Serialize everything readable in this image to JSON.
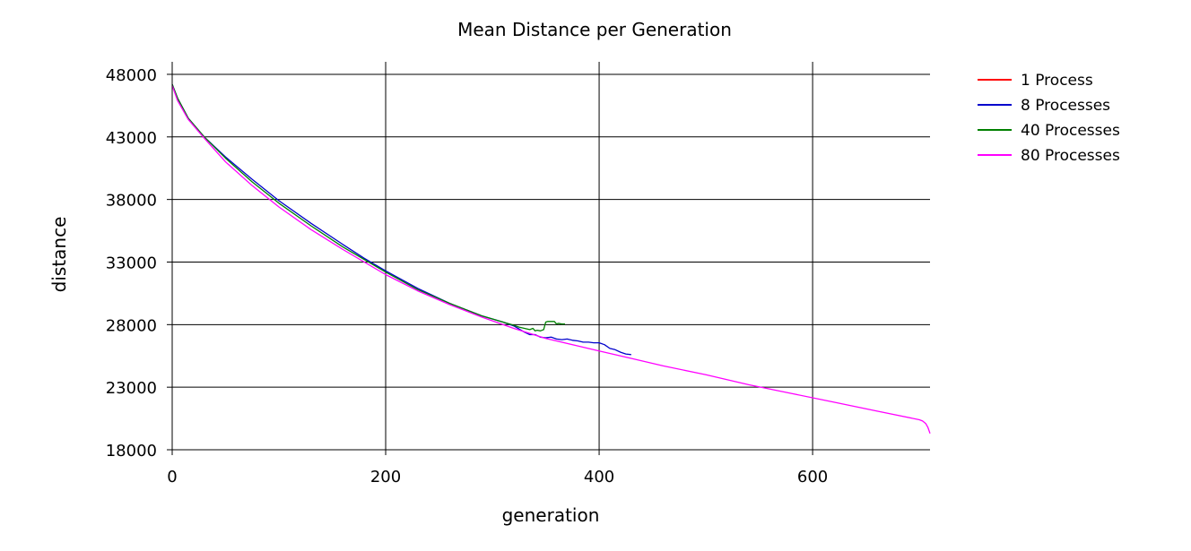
{
  "chart_data": {
    "type": "line",
    "title": "Mean Distance per Generation",
    "xlabel": "generation",
    "ylabel": "distance",
    "xlim": [
      0,
      710
    ],
    "ylim": [
      18000,
      49000
    ],
    "x_ticks": [
      0,
      200,
      400,
      600
    ],
    "y_ticks": [
      18000,
      23000,
      28000,
      33000,
      38000,
      43000,
      48000
    ],
    "grid": true,
    "legend_position": "right",
    "series": [
      {
        "name": "1 Process",
        "color": "#ff0000",
        "x": [
          0
        ],
        "values": [
          47200
        ]
      },
      {
        "name": "8 Processes",
        "color": "#0000cc",
        "x": [
          0,
          5,
          15,
          30,
          50,
          75,
          100,
          130,
          160,
          180,
          200,
          230,
          260,
          290,
          310,
          320,
          325,
          330,
          335,
          340,
          345,
          350,
          355,
          360,
          365,
          370,
          375,
          380,
          385,
          390,
          395,
          400,
          405,
          410,
          415,
          420,
          425,
          430
        ],
        "values": [
          47200,
          46100,
          44500,
          43000,
          41400,
          39600,
          37900,
          36100,
          34400,
          33300,
          32300,
          30900,
          29700,
          28700,
          28200,
          27900,
          27650,
          27400,
          27200,
          27200,
          27000,
          26950,
          27000,
          26850,
          26800,
          26850,
          26750,
          26700,
          26600,
          26600,
          26550,
          26550,
          26400,
          26100,
          26000,
          25800,
          25650,
          25600
        ]
      },
      {
        "name": "40 Processes",
        "color": "#008000",
        "x": [
          0,
          5,
          15,
          30,
          50,
          75,
          100,
          130,
          160,
          180,
          200,
          230,
          260,
          290,
          310,
          320,
          325,
          330,
          335,
          338,
          340,
          342,
          345,
          348,
          350,
          352,
          355,
          358,
          360,
          362,
          365,
          368
        ],
        "values": [
          47200,
          46100,
          44500,
          43000,
          41300,
          39400,
          37700,
          35900,
          34200,
          33200,
          32200,
          30800,
          29700,
          28700,
          28200,
          27950,
          27800,
          27700,
          27600,
          27700,
          27500,
          27550,
          27500,
          27600,
          28200,
          28250,
          28250,
          28250,
          28050,
          28100,
          28050,
          28050
        ]
      },
      {
        "name": "80 Processes",
        "color": "#ff00ff",
        "x": [
          0,
          5,
          15,
          30,
          50,
          75,
          100,
          130,
          160,
          180,
          200,
          230,
          260,
          290,
          320,
          350,
          380,
          400,
          430,
          460,
          500,
          540,
          580,
          620,
          660,
          700,
          703,
          706,
          708,
          710
        ],
        "values": [
          47100,
          45900,
          44400,
          42900,
          41000,
          39100,
          37400,
          35600,
          34000,
          33000,
          32000,
          30700,
          29600,
          28600,
          27700,
          26900,
          26300,
          25900,
          25300,
          24700,
          24000,
          23200,
          22500,
          21800,
          21100,
          20400,
          20300,
          20100,
          19800,
          19300
        ]
      }
    ]
  }
}
